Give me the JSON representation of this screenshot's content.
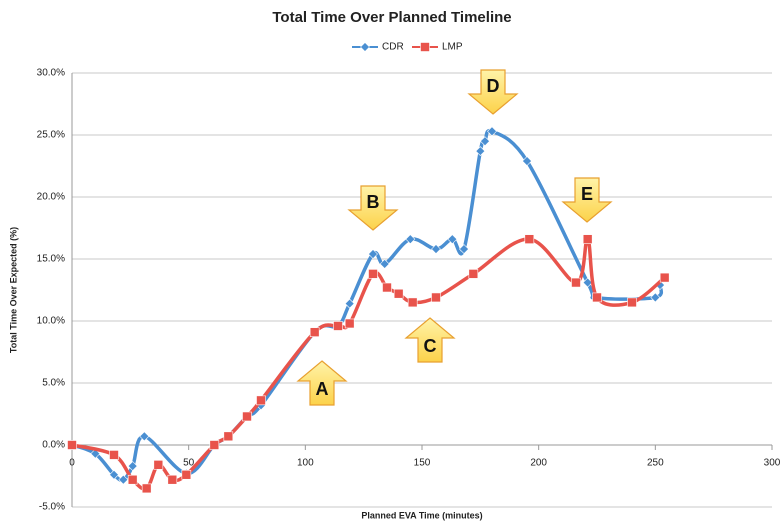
{
  "chart_data": {
    "type": "line",
    "title": "Total Time Over Planned Timeline",
    "x_label": "Planned EVA Time (minutes)",
    "y_label": "Total Time Over Expected (%)",
    "xlim": [
      0,
      300
    ],
    "xticks": [
      0,
      50,
      100,
      150,
      200,
      250,
      300
    ],
    "ylim": [
      -5,
      30
    ],
    "yticks": [
      {
        "value": -5,
        "label": "-5.0%"
      },
      {
        "value": 0,
        "label": "0.0%"
      },
      {
        "value": 5,
        "label": "5.0%"
      },
      {
        "value": 10,
        "label": "10.0%"
      },
      {
        "value": 15,
        "label": "15.0%"
      },
      {
        "value": 20,
        "label": "20.0%"
      },
      {
        "value": 25,
        "label": "25.0%"
      },
      {
        "value": 30,
        "label": "30.0%"
      }
    ],
    "grid": true,
    "legend": "top",
    "series": [
      {
        "name": "CDR",
        "color": "#4a8fd2",
        "marker": "diamond",
        "x": [
          0,
          10,
          18,
          22,
          26,
          31,
          49,
          61,
          67,
          75,
          81,
          104,
          114,
          119,
          129,
          134,
          145,
          156,
          163,
          168,
          175,
          177,
          180,
          195,
          221,
          225,
          250,
          252
        ],
        "values": [
          0,
          -0.7,
          -2.4,
          -2.8,
          -1.7,
          0.7,
          -2.3,
          0,
          0.7,
          2.3,
          3.2,
          9.1,
          9.6,
          11.4,
          15.4,
          14.6,
          16.6,
          15.8,
          16.6,
          15.8,
          23.7,
          24.5,
          25.3,
          22.9,
          13.1,
          11.9,
          11.9,
          12.9
        ]
      },
      {
        "name": "LMP",
        "color": "#e8534b",
        "marker": "square",
        "x": [
          0,
          18,
          26,
          32,
          37,
          43,
          49,
          61,
          67,
          75,
          81,
          104,
          114,
          119,
          129,
          135,
          140,
          146,
          156,
          172,
          196,
          216,
          221,
          225,
          240,
          254
        ],
        "values": [
          0,
          -0.8,
          -2.8,
          -3.5,
          -1.6,
          -2.8,
          -2.4,
          0,
          0.7,
          2.3,
          3.6,
          9.1,
          9.6,
          9.8,
          13.8,
          12.7,
          12.2,
          11.5,
          11.9,
          13.8,
          16.6,
          13.1,
          16.6,
          11.9,
          11.5,
          13.5
        ]
      }
    ],
    "annotations": [
      {
        "label": "A",
        "direction": "up"
      },
      {
        "label": "B",
        "direction": "down"
      },
      {
        "label": "C",
        "direction": "up"
      },
      {
        "label": "D",
        "direction": "down"
      },
      {
        "label": "E",
        "direction": "down"
      }
    ]
  }
}
